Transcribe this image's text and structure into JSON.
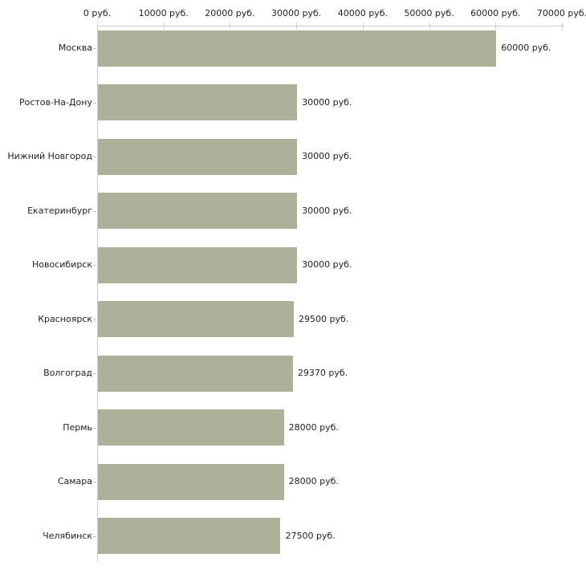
{
  "chart_data": {
    "type": "bar",
    "orientation": "horizontal",
    "title": "",
    "categories": [
      "Москва",
      "Ростов-На-Дону",
      "Нижний Новгород",
      "Екатеринбург",
      "Новосибирск",
      "Красноярск",
      "Волгоград",
      "Пермь",
      "Самара",
      "Челябинск"
    ],
    "values": [
      60000,
      30000,
      30000,
      30000,
      30000,
      29500,
      29370,
      28000,
      28000,
      27500
    ],
    "value_labels": [
      "60000 руб.",
      "30000 руб.",
      "30000 руб.",
      "30000 руб.",
      "30000 руб.",
      "29500 руб.",
      "29370 руб.",
      "28000 руб.",
      "28000 руб.",
      "27500 руб."
    ],
    "unit": "руб.",
    "x_axis": {
      "position": "top",
      "min": 0,
      "max": 70000,
      "tick_interval": 10000,
      "tick_labels": [
        "0 руб.",
        "10000 руб.",
        "20000 руб.",
        "30000 руб.",
        "40000 руб.",
        "50000 руб.",
        "60000 руб.",
        "70000 руб."
      ]
    },
    "grid": false,
    "legend": false,
    "colors": {
      "bar": "#acb199",
      "axis_line": "#cccccc",
      "axis_tick": "#d3d5ad",
      "text": "#222222",
      "background": "#ffffff"
    }
  }
}
